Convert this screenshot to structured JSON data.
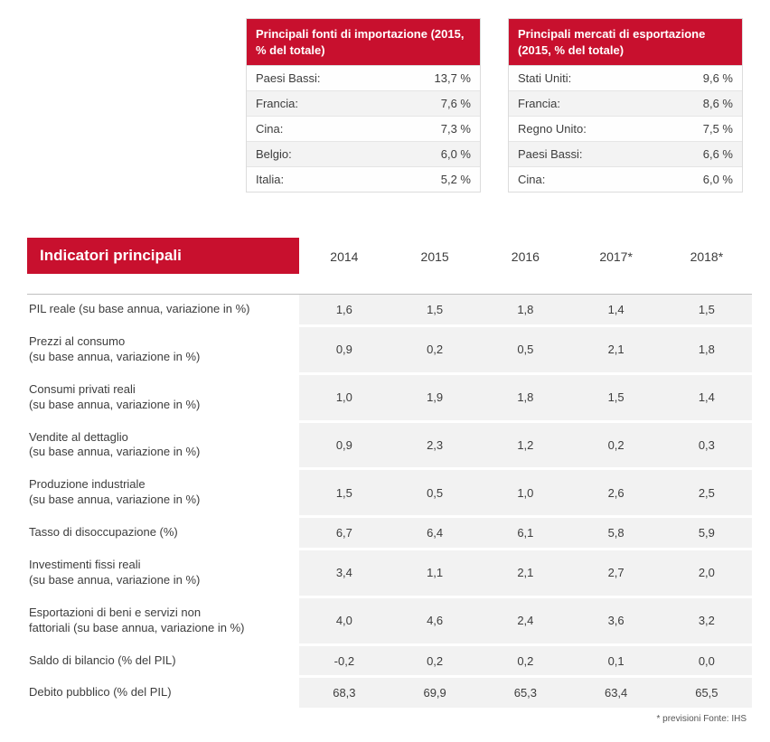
{
  "colors": {
    "brand_red": "#c8102e",
    "row_grey": "#f2f2f2",
    "stripe_grey": "#f3f3f3",
    "border_grey": "#dcdcdc",
    "text": "#3d3d3d",
    "background": "#ffffff"
  },
  "imports": {
    "title": "Principali fonti di importa­zione (2015, % del totale)",
    "rows": [
      {
        "label": "Paesi Bassi:",
        "value": "13,7 %"
      },
      {
        "label": "Francia:",
        "value": "7,6 %"
      },
      {
        "label": "Cina:",
        "value": "7,3 %"
      },
      {
        "label": "Belgio:",
        "value": "6,0 %"
      },
      {
        "label": "Italia:",
        "value": "5,2 %"
      }
    ]
  },
  "exports": {
    "title": "Principali mercati di espor­tazione (2015, % del totale)",
    "rows": [
      {
        "label": "Stati Uniti:",
        "value": "9,6 %"
      },
      {
        "label": "Francia:",
        "value": "8,6 %"
      },
      {
        "label": "Regno Unito:",
        "value": "7,5 %"
      },
      {
        "label": "Paesi Bassi:",
        "value": "6,6 %"
      },
      {
        "label": "Cina:",
        "value": "6,0 %"
      }
    ]
  },
  "indicators": {
    "header_label": "Indicatori principali",
    "years": [
      "2014",
      "2015",
      "2016",
      "2017*",
      "2018*"
    ],
    "rows": [
      {
        "label": "PIL reale (su base annua, variazione in %)",
        "values": [
          "1,6",
          "1,5",
          "1,8",
          "1,4",
          "1,5"
        ]
      },
      {
        "label": "Prezzi al consumo\n(su base annua, variazione in %)",
        "values": [
          "0,9",
          "0,2",
          "0,5",
          "2,1",
          "1,8"
        ]
      },
      {
        "label": "Consumi privati reali\n(su base annua, variazione in %)",
        "values": [
          "1,0",
          "1,9",
          "1,8",
          "1,5",
          "1,4"
        ]
      },
      {
        "label": "Vendite al dettaglio\n(su base annua, variazione in %)",
        "values": [
          "0,9",
          "2,3",
          "1,2",
          "0,2",
          "0,3"
        ]
      },
      {
        "label": "Produzione industriale\n(su base annua, variazione in %)",
        "values": [
          "1,5",
          "0,5",
          "1,0",
          "2,6",
          "2,5"
        ]
      },
      {
        "label": "Tasso di disoccupazione  (%)",
        "values": [
          "6,7",
          "6,4",
          "6,1",
          "5,8",
          "5,9"
        ]
      },
      {
        "label": "Investimenti fissi reali\n(su base annua, variazione in %)",
        "values": [
          "3,4",
          "1,1",
          "2,1",
          "2,7",
          "2,0"
        ]
      },
      {
        "label": "Esportazioni di beni e servizi non\nfattoriali (su base annua, variazione in %)",
        "values": [
          "4,0",
          "4,6",
          "2,4",
          "3,6",
          "3,2"
        ]
      },
      {
        "label": "Saldo di bilancio (% del PIL)",
        "values": [
          "-0,2",
          "0,2",
          "0,2",
          "0,1",
          "0,0"
        ]
      },
      {
        "label": "Debito pubblico (% del PIL)",
        "values": [
          "68,3",
          "69,9",
          "65,3",
          "63,4",
          "65,5"
        ]
      }
    ],
    "footnote": "* previsioni   Fonte: IHS"
  }
}
